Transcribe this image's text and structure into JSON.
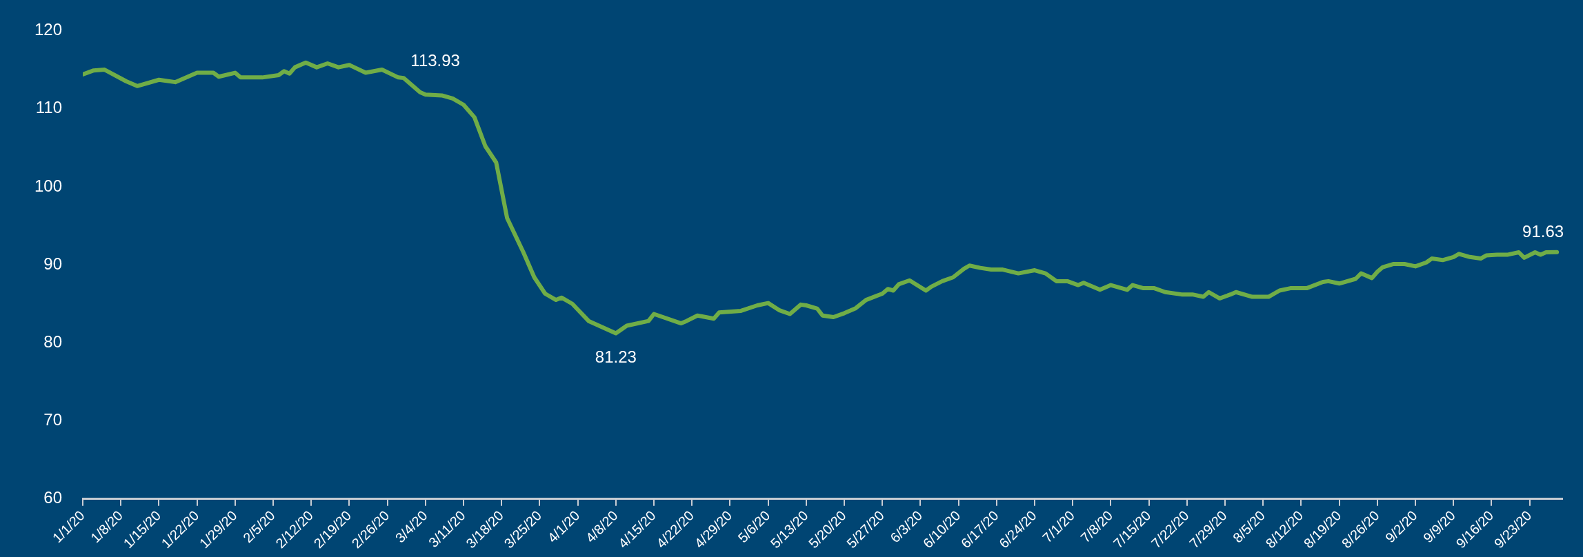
{
  "chart_data": {
    "type": "line",
    "x": [
      "--01-01",
      "--01-03",
      "--01-05",
      "--01-09",
      "--01-11",
      "--01-15",
      "--01-18",
      "--01-22",
      "--01-25",
      "--01-26",
      "--01-29",
      "--01-30",
      "--02-03",
      "--02-06",
      "--02-07",
      "--02-08",
      "--02-09",
      "--02-11",
      "--02-13",
      "--02-15",
      "--02-17",
      "--02-19",
      "--02-22",
      "--02-25",
      "--02-28",
      "--02-29",
      "--03-03",
      "--03-04",
      "--03-07",
      "--03-09",
      "--03-11",
      "--03-13",
      "--03-15",
      "--03-17",
      "--03-19",
      "--03-22",
      "--03-24",
      "--03-26",
      "--03-28",
      "--03-29",
      "--03-31",
      "--04-03",
      "--04-08",
      "--04-10",
      "--04-14",
      "--04-15",
      "--04-20",
      "--04-21",
      "--04-23",
      "--04-26",
      "--04-27",
      "--05-01",
      "--05-04",
      "--05-06",
      "--05-08",
      "--05-10",
      "--05-12",
      "--05-13",
      "--05-15",
      "--05-16",
      "--05-18",
      "--05-20",
      "--05-22",
      "--05-24",
      "--05-27",
      "--05-28",
      "--05-29",
      "--05-30",
      "--06-01",
      "--06-04",
      "--06-05",
      "--06-07",
      "--06-09",
      "--06-11",
      "--06-12",
      "--06-14",
      "--06-16",
      "--06-18",
      "--06-21",
      "--06-24",
      "--06-26",
      "--06-28",
      "--06-30",
      "--07-02",
      "--07-03",
      "--07-06",
      "--07-08",
      "--07-11",
      "--07-12",
      "--07-14",
      "--07-16",
      "--07-18",
      "--07-21",
      "--07-23",
      "--07-25",
      "--07-26",
      "--07-28",
      "--07-30",
      "--07-31",
      "--08-03",
      "--08-06",
      "--08-08",
      "--08-10",
      "--08-13",
      "--08-16",
      "--08-17",
      "--08-19",
      "--08-22",
      "--08-23",
      "--08-25",
      "--08-26",
      "--08-27",
      "--08-29",
      "--08-31",
      "--09-02",
      "--09-04",
      "--09-05",
      "--09-07",
      "--09-09",
      "--09-10",
      "--09-12",
      "--09-14",
      "--09-15",
      "--09-17",
      "--09-19",
      "--09-21",
      "--09-22",
      "--09-24",
      "--09-25",
      "--09-26",
      "--09-28"
    ],
    "series": [
      {
        "color": "#70ad47",
        "values": [
          114.4,
          114.9,
          115.0,
          113.5,
          112.9,
          113.7,
          113.4,
          114.6,
          114.6,
          114.1,
          114.6,
          114.0,
          114.0,
          114.3,
          114.8,
          114.5,
          115.3,
          115.9,
          115.3,
          115.8,
          115.3,
          115.6,
          114.6,
          115.0,
          114.0,
          113.93,
          112.1,
          111.8,
          111.7,
          111.3,
          110.5,
          108.9,
          105.2,
          103.1,
          96.0,
          91.6,
          88.4,
          86.3,
          85.5,
          85.8,
          85.0,
          82.8,
          81.23,
          82.2,
          82.8,
          83.7,
          82.5,
          82.8,
          83.5,
          83.1,
          83.9,
          84.1,
          84.8,
          85.1,
          84.2,
          83.7,
          84.9,
          84.8,
          84.4,
          83.5,
          83.3,
          83.8,
          84.4,
          85.5,
          86.3,
          86.9,
          86.7,
          87.5,
          88.0,
          86.7,
          87.2,
          87.9,
          88.4,
          89.5,
          89.9,
          89.6,
          89.4,
          89.4,
          88.9,
          89.3,
          88.9,
          87.9,
          87.9,
          87.4,
          87.7,
          86.8,
          87.4,
          86.8,
          87.4,
          87.0,
          87.0,
          86.5,
          86.2,
          86.2,
          85.9,
          86.5,
          85.7,
          86.2,
          86.5,
          85.9,
          85.9,
          86.7,
          87.0,
          87.0,
          87.8,
          87.9,
          87.6,
          88.2,
          88.9,
          88.3,
          89.1,
          89.7,
          90.1,
          90.1,
          89.8,
          90.3,
          90.8,
          90.6,
          91.0,
          91.4,
          91.0,
          90.8,
          91.2,
          91.3,
          91.3,
          91.6,
          90.9,
          91.6,
          91.3,
          91.6,
          91.63
        ],
        "value_labels": [
          null,
          null,
          null,
          null,
          null,
          null,
          null,
          null,
          null,
          null,
          null,
          null,
          null,
          null,
          null,
          null,
          null,
          null,
          null,
          null,
          null,
          null,
          null,
          null,
          null,
          "113.93",
          null,
          null,
          null,
          null,
          null,
          null,
          null,
          null,
          null,
          null,
          null,
          null,
          null,
          null,
          null,
          null,
          "81.23",
          null,
          null,
          null,
          null,
          null,
          null,
          null,
          null,
          null,
          null,
          null,
          null,
          null,
          null,
          null,
          null,
          null,
          null,
          null,
          null,
          null,
          null,
          null,
          null,
          null,
          null,
          null,
          null,
          null,
          null,
          null,
          null,
          null,
          null,
          null,
          null,
          null,
          null,
          null,
          null,
          null,
          null,
          null,
          null,
          null,
          null,
          null,
          null,
          null,
          null,
          null,
          null,
          null,
          null,
          null,
          null,
          null,
          null,
          null,
          null,
          null,
          null,
          null,
          null,
          null,
          null,
          null,
          null,
          null,
          null,
          null,
          null,
          null,
          null,
          null,
          null,
          null,
          null,
          null,
          null,
          null,
          null,
          null,
          null,
          null,
          null,
          null,
          "91.63"
        ]
      }
    ],
    "xlim": [
      "--01-01",
      "--09-29"
    ],
    "xticks": [
      {
        "value": "--01-01",
        "label": "1/1/20"
      },
      {
        "value": "--01-08",
        "label": "1/8/20"
      },
      {
        "value": "--01-15",
        "label": "1/15/20"
      },
      {
        "value": "--01-22",
        "label": "1/22/20"
      },
      {
        "value": "--01-29",
        "label": "1/29/20"
      },
      {
        "value": "--02-05",
        "label": "2/5/20"
      },
      {
        "value": "--02-12",
        "label": "2/12/20"
      },
      {
        "value": "--02-19",
        "label": "2/19/20"
      },
      {
        "value": "--02-26",
        "label": "2/26/20"
      },
      {
        "value": "--03-04",
        "label": "3/4/20"
      },
      {
        "value": "--03-11",
        "label": "3/11/20"
      },
      {
        "value": "--03-18",
        "label": "3/18/20"
      },
      {
        "value": "--03-25",
        "label": "3/25/20"
      },
      {
        "value": "--04-01",
        "label": "4/1/20"
      },
      {
        "value": "--04-08",
        "label": "4/8/20"
      },
      {
        "value": "--04-15",
        "label": "4/15/20"
      },
      {
        "value": "--04-22",
        "label": "4/22/20"
      },
      {
        "value": "--04-29",
        "label": "4/29/20"
      },
      {
        "value": "--05-06",
        "label": "5/6/20"
      },
      {
        "value": "--05-13",
        "label": "5/13/20"
      },
      {
        "value": "--05-20",
        "label": "5/20/20"
      },
      {
        "value": "--05-27",
        "label": "5/27/20"
      },
      {
        "value": "--06-03",
        "label": "6/3/20"
      },
      {
        "value": "--06-10",
        "label": "6/10/20"
      },
      {
        "value": "--06-17",
        "label": "6/17/20"
      },
      {
        "value": "--06-24",
        "label": "6/24/20"
      },
      {
        "value": "--07-01",
        "label": "7/1/20"
      },
      {
        "value": "--07-08",
        "label": "7/8/20"
      },
      {
        "value": "--07-15",
        "label": "7/15/20"
      },
      {
        "value": "--07-22",
        "label": "7/22/20"
      },
      {
        "value": "--07-29",
        "label": "7/29/20"
      },
      {
        "value": "--08-05",
        "label": "8/5/20"
      },
      {
        "value": "--08-12",
        "label": "8/12/20"
      },
      {
        "value": "--08-19",
        "label": "8/19/20"
      },
      {
        "value": "--08-26",
        "label": "8/26/20"
      },
      {
        "value": "--09-02",
        "label": "9/2/20"
      },
      {
        "value": "--09-09",
        "label": "9/9/20"
      },
      {
        "value": "--09-16",
        "label": "9/16/20"
      },
      {
        "value": "--09-23",
        "label": "9/23/20"
      }
    ],
    "ylim": [
      60,
      120
    ],
    "yticks": [
      60,
      70,
      80,
      90,
      100,
      110,
      120
    ],
    "legend": false
  }
}
